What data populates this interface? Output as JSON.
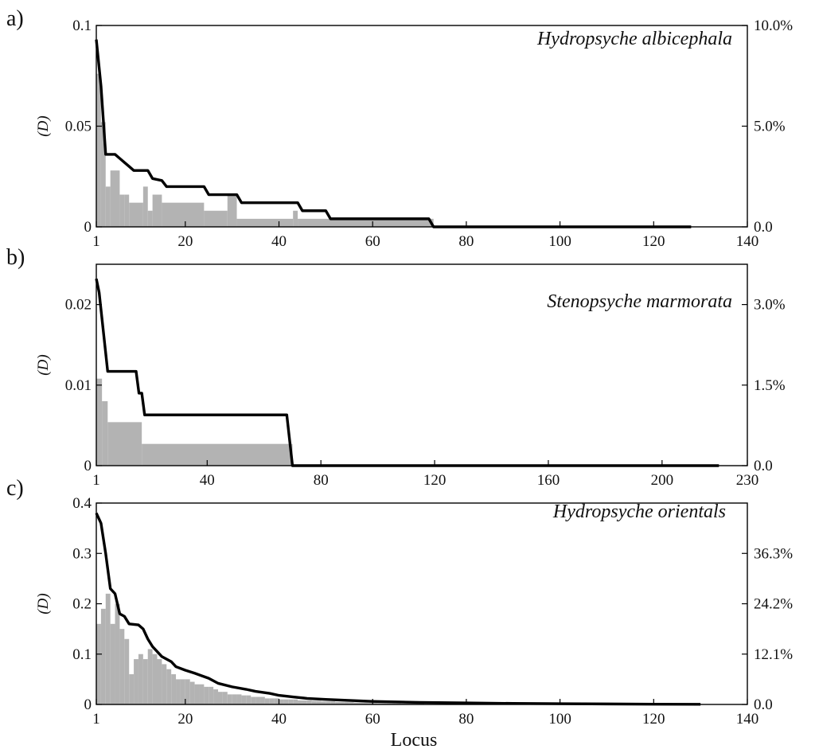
{
  "chart_data": [
    {
      "type": "bar",
      "panel_label": "a)",
      "title": "Hydropsyche albicephala",
      "ylabel": "(D)",
      "xlim": [
        1,
        140
      ],
      "ylim": [
        0,
        0.1
      ],
      "x_ticks": [
        1,
        20,
        40,
        60,
        80,
        100,
        120,
        140
      ],
      "y_ticks": [
        0,
        0.05,
        0.1
      ],
      "y_tick_labels": [
        "0",
        "0.05",
        "0.1"
      ],
      "y2_ticks": [
        0,
        0.05,
        0.1
      ],
      "y2_tick_labels": [
        "0.0",
        "5.0%",
        "10.0%"
      ],
      "legend": "none",
      "grid": false,
      "bars": {
        "color": "#b3b3b3",
        "segments": [
          {
            "from": 1,
            "to": 2,
            "value": 0.076
          },
          {
            "from": 2,
            "to": 3,
            "value": 0.052
          },
          {
            "from": 3,
            "to": 4,
            "value": 0.02
          },
          {
            "from": 4,
            "to": 6,
            "value": 0.028
          },
          {
            "from": 6,
            "to": 7,
            "value": 0.016
          },
          {
            "from": 7,
            "to": 8,
            "value": 0.016
          },
          {
            "from": 8,
            "to": 11,
            "value": 0.012
          },
          {
            "from": 11,
            "to": 12,
            "value": 0.02
          },
          {
            "from": 12,
            "to": 13,
            "value": 0.008
          },
          {
            "from": 13,
            "to": 15,
            "value": 0.016
          },
          {
            "from": 15,
            "to": 24,
            "value": 0.012
          },
          {
            "from": 24,
            "to": 29,
            "value": 0.008
          },
          {
            "from": 29,
            "to": 31,
            "value": 0.016
          },
          {
            "from": 31,
            "to": 43,
            "value": 0.004
          },
          {
            "from": 43,
            "to": 44,
            "value": 0.008
          },
          {
            "from": 44,
            "to": 73,
            "value": 0.004
          }
        ]
      },
      "line": {
        "color": "#000000",
        "points": [
          [
            1,
            0.093
          ],
          [
            2,
            0.07
          ],
          [
            3,
            0.036
          ],
          [
            5,
            0.036
          ],
          [
            6,
            0.034
          ],
          [
            7,
            0.032
          ],
          [
            8,
            0.03
          ],
          [
            9,
            0.028
          ],
          [
            12,
            0.028
          ],
          [
            13,
            0.024
          ],
          [
            15,
            0.023
          ],
          [
            16,
            0.02
          ],
          [
            24,
            0.02
          ],
          [
            25,
            0.016
          ],
          [
            31,
            0.016
          ],
          [
            32,
            0.012
          ],
          [
            44,
            0.012
          ],
          [
            45,
            0.008
          ],
          [
            50,
            0.008
          ],
          [
            51,
            0.004
          ],
          [
            72,
            0.004
          ],
          [
            73,
            0
          ],
          [
            128,
            0
          ]
        ]
      }
    },
    {
      "type": "bar",
      "panel_label": "b)",
      "title": "Stenopsyche marmorata",
      "ylabel": "(D)",
      "xlim": [
        1,
        230
      ],
      "ylim": [
        0,
        0.025
      ],
      "x_ticks": [
        1,
        40,
        80,
        120,
        160,
        200,
        230
      ],
      "y_ticks": [
        0,
        0.01,
        0.02
      ],
      "y_tick_labels": [
        "0",
        "0.01",
        "0.02"
      ],
      "y2_ticks": [
        0,
        0.01,
        0.02
      ],
      "y2_tick_labels": [
        "0.0",
        "1.5%",
        "3.0%"
      ],
      "legend": "none",
      "grid": false,
      "bars": {
        "color": "#b3b3b3",
        "segments": [
          {
            "from": 1,
            "to": 3,
            "value": 0.0108
          },
          {
            "from": 3,
            "to": 5,
            "value": 0.008
          },
          {
            "from": 5,
            "to": 17,
            "value": 0.0054
          },
          {
            "from": 17,
            "to": 70,
            "value": 0.0027
          }
        ]
      },
      "line": {
        "color": "#000000",
        "points": [
          [
            1,
            0.0232
          ],
          [
            2,
            0.0215
          ],
          [
            5,
            0.0117
          ],
          [
            15,
            0.0117
          ],
          [
            16,
            0.009
          ],
          [
            17,
            0.009
          ],
          [
            18,
            0.0063
          ],
          [
            68,
            0.0063
          ],
          [
            70,
            0
          ],
          [
            220,
            0
          ]
        ]
      }
    },
    {
      "type": "bar",
      "panel_label": "c)",
      "title": "Hydropsyche orientals",
      "ylabel": "(D)",
      "xlabel": "Locus",
      "xlim": [
        1,
        140
      ],
      "ylim": [
        0,
        0.4
      ],
      "x_ticks": [
        1,
        20,
        40,
        60,
        80,
        100,
        120,
        140
      ],
      "y_ticks": [
        0,
        0.1,
        0.2,
        0.3,
        0.4
      ],
      "y_tick_labels": [
        "0",
        "0.1",
        "0.2",
        "0.3",
        "0.4"
      ],
      "y2_ticks": [
        0,
        0.1,
        0.2,
        0.3
      ],
      "y2_tick_labels": [
        "0.0",
        "12.1%",
        "24.2%",
        "36.3%"
      ],
      "legend": "none",
      "grid": false,
      "bars": {
        "color": "#b3b3b3",
        "values": [
          0.16,
          0.19,
          0.22,
          0.16,
          0.2,
          0.15,
          0.13,
          0.06,
          0.09,
          0.1,
          0.09,
          0.11,
          0.1,
          0.09,
          0.08,
          0.07,
          0.06,
          0.05,
          0.05,
          0.05,
          0.045,
          0.04,
          0.04,
          0.035,
          0.035,
          0.03,
          0.025,
          0.025,
          0.02,
          0.02,
          0.02,
          0.018,
          0.018,
          0.015,
          0.015,
          0.015,
          0.012,
          0.012,
          0.012,
          0.01,
          0.01,
          0.01,
          0.01,
          0.008,
          0.008,
          0.008,
          0.007,
          0.007,
          0.006,
          0.006,
          0.006,
          0.005,
          0.005,
          0.005,
          0.005,
          0.004,
          0.004,
          0.004,
          0.004,
          0.004,
          0.003,
          0.003,
          0.003,
          0.003,
          0.003,
          0.002,
          0.002,
          0.002,
          0.002,
          0.002
        ]
      },
      "line": {
        "color": "#000000",
        "points": [
          [
            1,
            0.38
          ],
          [
            2,
            0.36
          ],
          [
            3,
            0.3
          ],
          [
            4,
            0.23
          ],
          [
            5,
            0.22
          ],
          [
            6,
            0.18
          ],
          [
            7,
            0.175
          ],
          [
            8,
            0.16
          ],
          [
            10,
            0.158
          ],
          [
            11,
            0.15
          ],
          [
            12,
            0.13
          ],
          [
            13,
            0.115
          ],
          [
            15,
            0.095
          ],
          [
            17,
            0.085
          ],
          [
            18,
            0.075
          ],
          [
            20,
            0.068
          ],
          [
            22,
            0.062
          ],
          [
            25,
            0.052
          ],
          [
            27,
            0.042
          ],
          [
            30,
            0.035
          ],
          [
            33,
            0.03
          ],
          [
            35,
            0.026
          ],
          [
            38,
            0.022
          ],
          [
            40,
            0.018
          ],
          [
            43,
            0.015
          ],
          [
            46,
            0.012
          ],
          [
            50,
            0.01
          ],
          [
            55,
            0.008
          ],
          [
            60,
            0.006
          ],
          [
            70,
            0.004
          ],
          [
            80,
            0.003
          ],
          [
            90,
            0.002
          ],
          [
            100,
            0.0015
          ],
          [
            110,
            0.001
          ],
          [
            120,
            0.0005
          ],
          [
            130,
            0.0003
          ]
        ]
      }
    }
  ]
}
